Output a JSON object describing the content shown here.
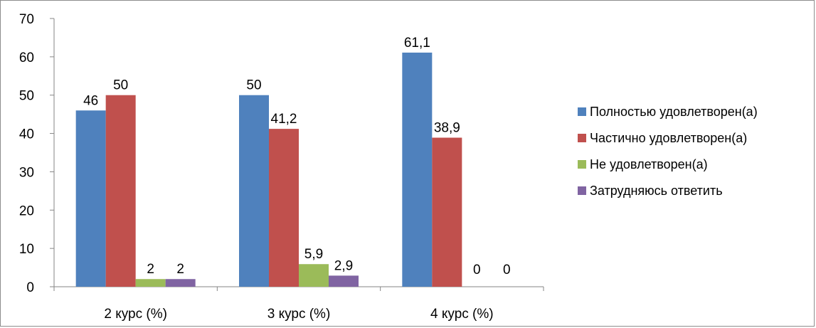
{
  "chart_data": {
    "type": "bar",
    "categories": [
      "2 курс (%)",
      "3 курс (%)",
      "4 курс (%)"
    ],
    "series": [
      {
        "name": "Полностью удовлетворен(а)",
        "values": [
          46,
          50,
          61.1
        ],
        "labels": [
          "46",
          "50",
          "61,1"
        ],
        "color": "#4f81bd"
      },
      {
        "name": "Частично удовлетворен(а)",
        "values": [
          50,
          41.2,
          38.9
        ],
        "labels": [
          "50",
          "41,2",
          "38,9"
        ],
        "color": "#c0504d"
      },
      {
        "name": "Не удовлетворен(а)",
        "values": [
          2,
          5.9,
          0
        ],
        "labels": [
          "2",
          "5,9",
          "0"
        ],
        "color": "#9bbb59"
      },
      {
        "name": "Затрудняюсь ответить",
        "values": [
          2,
          2.9,
          0
        ],
        "labels": [
          "2",
          "2,9",
          "0"
        ],
        "color": "#8064a2"
      }
    ],
    "ylim": [
      0,
      70
    ],
    "yticks": [
      0,
      10,
      20,
      30,
      40,
      50,
      60,
      70
    ],
    "grid": false,
    "legend": "right"
  }
}
